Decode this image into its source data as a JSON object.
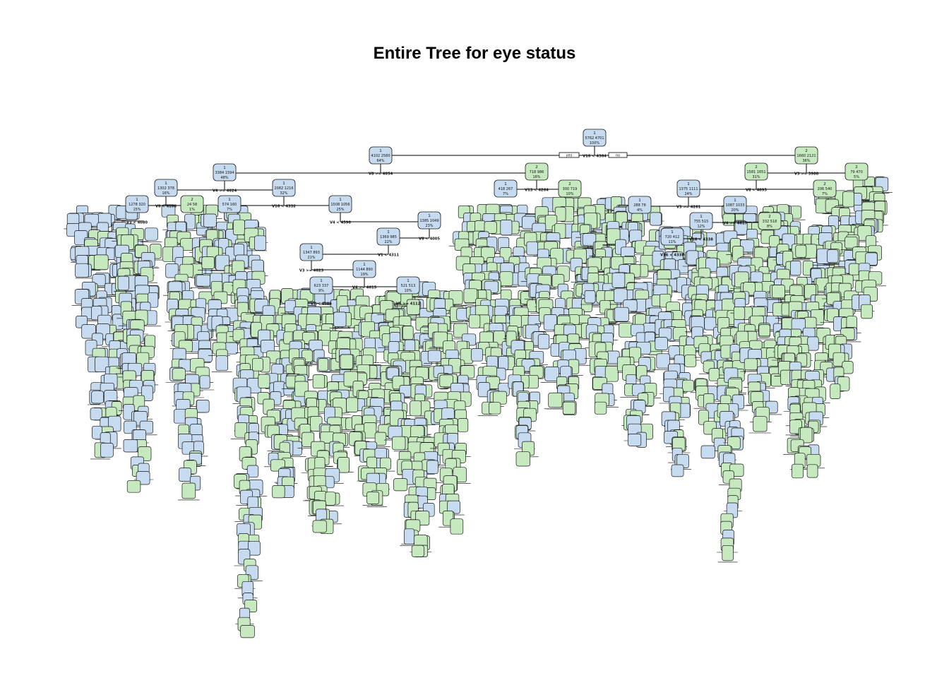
{
  "title": "Entire Tree for eye status",
  "colors": {
    "class1": "#c6dbef",
    "class2": "#c7e9c0",
    "edge": "#000000",
    "text": "#111111"
  },
  "branch_labels": {
    "yes": "yes",
    "no": "no"
  },
  "nodes": [
    {
      "id": "root",
      "cls": "1",
      "counts": "5762  4701",
      "pct": "100%",
      "split": "V16 < 4364"
    },
    {
      "id": "L",
      "parent": "root",
      "cls": "1",
      "counts": "4102  2580",
      "pct": "64%",
      "split": "V8 >= 4054"
    },
    {
      "id": "R",
      "parent": "root",
      "cls": "2",
      "counts": "1660  2121",
      "pct": "36%",
      "split": "V3 >= 3988"
    },
    {
      "id": "LL",
      "parent": "L",
      "cls": "1",
      "counts": "3384  1594",
      "pct": "48%",
      "split": "V4 >= 4624"
    },
    {
      "id": "LR",
      "parent": "L",
      "cls": "2",
      "counts": "718  986",
      "pct": "16%",
      "split": "V13 < 4264"
    },
    {
      "id": "RL",
      "parent": "R",
      "cls": "2",
      "counts": "1581  1651",
      "pct": "31%",
      "split": "V8 < 4095"
    },
    {
      "id": "RR",
      "parent": "R",
      "cls": "2",
      "counts": "79  470",
      "pct": "5%",
      "split": ""
    },
    {
      "id": "LLL",
      "parent": "LL",
      "cls": "1",
      "counts": "1302  378",
      "pct": "16%",
      "split": "V8 < 4108"
    },
    {
      "id": "LLR",
      "parent": "LL",
      "cls": "1",
      "counts": "2082  1216",
      "pct": "32%",
      "split": "V16 < 4332"
    },
    {
      "id": "LRL",
      "parent": "LR",
      "cls": "1",
      "counts": "418  267",
      "pct": "7%",
      "split": ""
    },
    {
      "id": "LRR",
      "parent": "LR",
      "cls": "2",
      "counts": "300  719",
      "pct": "10%",
      "split": ""
    },
    {
      "id": "RLL",
      "parent": "RL",
      "cls": "1",
      "counts": "1375  1111",
      "pct": "24%",
      "split": "V3 >= 4261"
    },
    {
      "id": "RLR",
      "parent": "RL",
      "cls": "2",
      "counts": "206  540",
      "pct": "7%",
      "split": ""
    },
    {
      "id": "LLLL",
      "parent": "LLL",
      "cls": "1",
      "counts": "1278  320",
      "pct": "15%",
      "split": "V3 < 4080"
    },
    {
      "id": "LLLR",
      "parent": "LLL",
      "cls": "2",
      "counts": "24  58",
      "pct": "1%",
      "split": ""
    },
    {
      "id": "LLRL",
      "parent": "LLR",
      "cls": "1",
      "counts": "574  160",
      "pct": "7%",
      "split": ""
    },
    {
      "id": "LLRR",
      "parent": "LLR",
      "cls": "1",
      "counts": "1508  1056",
      "pct": "25%",
      "split": "V4 < 4590"
    },
    {
      "id": "RLLL",
      "parent": "RLL",
      "cls": "1",
      "counts": "288  78",
      "pct": "4%",
      "split": ""
    },
    {
      "id": "RLLR",
      "parent": "RLL",
      "cls": "1",
      "counts": "1087  1033",
      "pct": "20%",
      "split": "V4 >= 4617"
    },
    {
      "id": "LLRRR",
      "parent": "LLRR",
      "cls": "1",
      "counts": "1385  1049",
      "pct": "23%",
      "split": "V8 < 4005"
    },
    {
      "id": "LLRRRL",
      "parent": "LLRRR",
      "cls": "1",
      "counts": "1369  985",
      "pct": "22%",
      "split": "V1 < 4311"
    },
    {
      "id": "LLRRRLL",
      "parent": "LLRRRL",
      "cls": "1",
      "counts": "1347  893",
      "pct": "21%",
      "split": "V3 >= 4023"
    },
    {
      "id": "LLRRRLLR",
      "parent": "LLRRRLL",
      "cls": "1",
      "counts": "1144  890",
      "pct": "19%",
      "split": "V4 >= 4615"
    },
    {
      "id": "LLRRRLLRL",
      "parent": "LLRRRLLR",
      "cls": "1",
      "counts": "623  337",
      "pct": "9%",
      "split": "V8 < 4086"
    },
    {
      "id": "LLRRRLLRR",
      "parent": "LLRRRLLR",
      "cls": "1",
      "counts": "521  513",
      "pct": "10%",
      "split": "V5 >= 4112"
    },
    {
      "id": "RLLRL",
      "parent": "RLLR",
      "cls": "1",
      "counts": "755  515",
      "pct": "12%",
      "split": "V16 < 4338"
    },
    {
      "id": "RLLRR",
      "parent": "RLLR",
      "cls": "2",
      "counts": "332  518",
      "pct": "8%",
      "split": ""
    },
    {
      "id": "RLLRLL",
      "parent": "RLLRL",
      "cls": "1",
      "counts": "720  412",
      "pct": "11%",
      "split": "V16 < 4338"
    }
  ]
}
